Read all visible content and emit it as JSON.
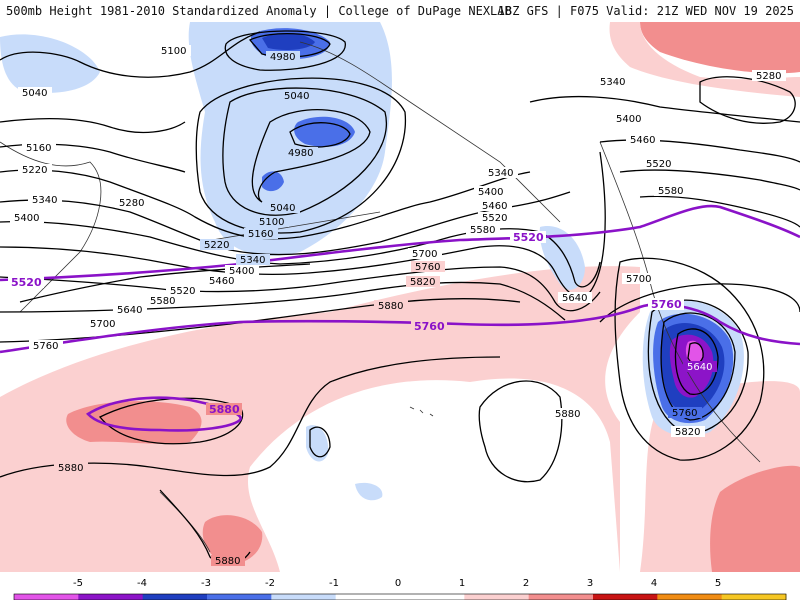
{
  "header": {
    "left": "500mb Height 1981-2010 Standardized Anomaly | College of DuPage NEXLAB",
    "right": "18Z GFS | F075 Valid: 21Z WED NOV 19 2025"
  },
  "colors": {
    "neg5": "#e254e8",
    "neg4": "#8c14c8",
    "neg3": "#1f3fc0",
    "neg2": "#4a6fe8",
    "neg1": "#c8dcfa",
    "neutral": "#ffffff",
    "pos1": "#fbd0d0",
    "pos2": "#f28e8e",
    "pos3": "#c81414",
    "pos4": "#f08c14",
    "pos5": "#f5c623",
    "contour": "#000000",
    "highlight_contour": "#8a12c8",
    "coastline": "#333333"
  },
  "contour_labels": [
    "4980",
    "5040",
    "5100",
    "5160",
    "5220",
    "5280",
    "5340",
    "5400",
    "5460",
    "5520",
    "5580",
    "5640",
    "5700",
    "5760",
    "5820",
    "5880"
  ],
  "highlight_labels": [
    "5520",
    "5760",
    "5880"
  ],
  "colorbar": {
    "ticks": [
      "-5",
      "-4",
      "-3",
      "-2",
      "-1",
      "0",
      "1",
      "2",
      "3",
      "4",
      "5"
    ]
  }
}
